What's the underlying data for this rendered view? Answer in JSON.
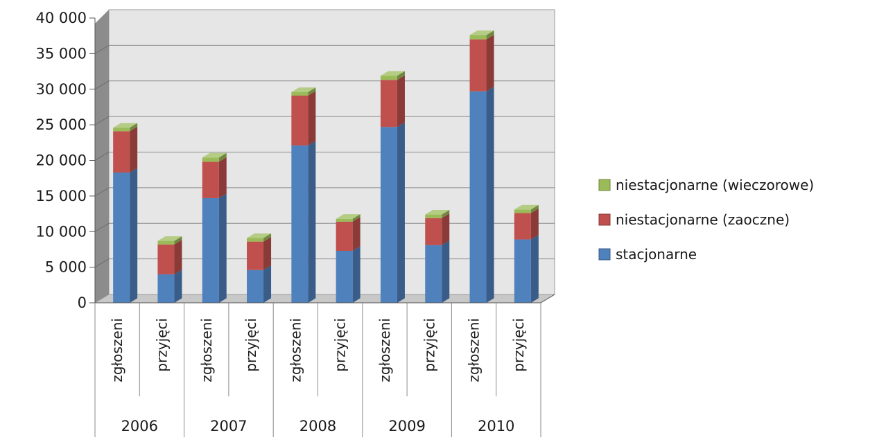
{
  "chart_data": {
    "type": "bar",
    "stacked": true,
    "three_d": true,
    "group_labels": [
      "2006",
      "2007",
      "2008",
      "2009",
      "2010"
    ],
    "categories": [
      "zgłoszeni",
      "przyjęci",
      "zgłoszeni",
      "przyjęci",
      "zgłoszeni",
      "przyjęci",
      "zgłoszeni",
      "przyjęci",
      "zgłoszeni",
      "przyjęci"
    ],
    "series": [
      {
        "name": "stacjonarne",
        "color": "#4F81BD",
        "values": [
          18300,
          4000,
          14700,
          4600,
          22100,
          7300,
          24700,
          8100,
          29700,
          8900
        ]
      },
      {
        "name": "niestacjonarne (zaoczne)",
        "color": "#C0504D",
        "values": [
          5800,
          4200,
          5100,
          4000,
          7000,
          4100,
          6600,
          3800,
          7300,
          3700
        ]
      },
      {
        "name": "niestacjonarne (wieczorowe)",
        "color": "#9BBB59",
        "values": [
          500,
          500,
          600,
          500,
          500,
          400,
          600,
          500,
          600,
          500
        ]
      }
    ],
    "ylim": [
      0,
      40000
    ],
    "yticks": [
      "0",
      "5 000",
      "10 000",
      "15 000",
      "20 000",
      "25 000",
      "30 000",
      "35 000",
      "40 000"
    ],
    "grid": true,
    "legend_position": "right"
  }
}
